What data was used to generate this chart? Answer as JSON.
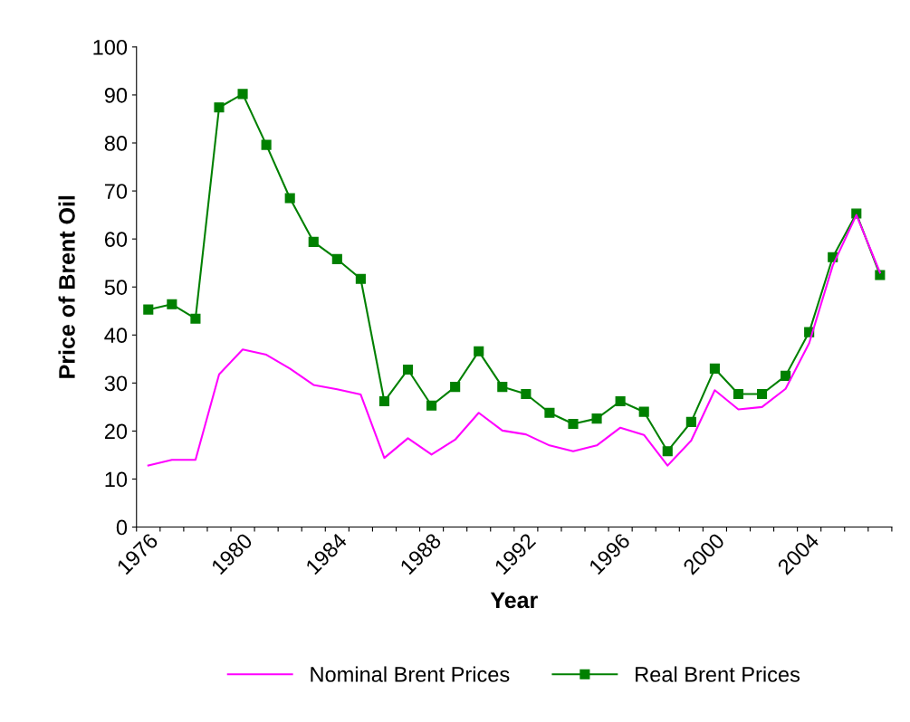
{
  "chart_data": {
    "type": "line",
    "xlabel": "Year",
    "ylabel": "Price of Brent Oil",
    "categories": [
      "1976",
      null,
      null,
      null,
      "1980",
      null,
      null,
      null,
      "1984",
      null,
      null,
      null,
      "1988",
      null,
      null,
      null,
      "1992",
      null,
      null,
      null,
      "1996",
      null,
      null,
      null,
      "2000",
      null,
      null,
      null,
      "2004",
      null,
      null,
      null
    ],
    "series": [
      {
        "name": "Nominal Brent Prices",
        "color": "#ff00ff",
        "marker": "none",
        "values": [
          12.8,
          14,
          14,
          31.8,
          37,
          35.9,
          33,
          29.6,
          28.7,
          27.6,
          14.4,
          18.5,
          15.1,
          18.2,
          23.8,
          20.1,
          19.3,
          17,
          15.8,
          17,
          20.7,
          19.2,
          12.8,
          18,
          28.5,
          24.5,
          25,
          28.8,
          38.3,
          54.5,
          65,
          53
        ]
      },
      {
        "name": "Real Brent Prices",
        "color": "#008000",
        "marker": "square",
        "values": [
          45.3,
          46.4,
          43.4,
          87.4,
          90.2,
          79.6,
          68.5,
          59.4,
          55.8,
          51.7,
          26.2,
          32.8,
          25.3,
          29.2,
          36.6,
          29.2,
          27.7,
          23.8,
          21.5,
          22.6,
          26.2,
          24.0,
          15.8,
          21.9,
          33.0,
          27.7,
          27.7,
          31.5,
          40.6,
          56.2,
          65.3,
          52.5
        ]
      }
    ],
    "ylim": [
      0,
      100
    ],
    "yticks": [
      0,
      10,
      20,
      30,
      40,
      50,
      60,
      70,
      80,
      90,
      100
    ],
    "grid": false,
    "legend": "bottom"
  }
}
